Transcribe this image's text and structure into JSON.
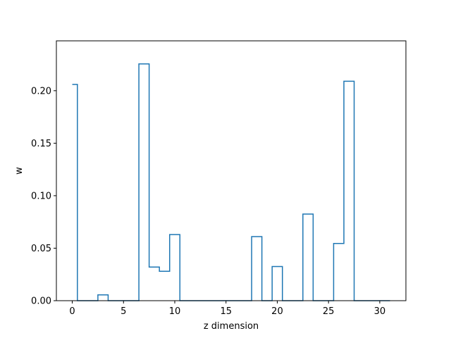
{
  "chart_data": {
    "type": "line",
    "drawstyle": "steps-mid",
    "title": "",
    "xlabel": "z dimension",
    "ylabel": "w",
    "xlim": [
      -1.55,
      32.55
    ],
    "ylim": [
      0,
      0.2475
    ],
    "xticks": [
      0,
      5,
      10,
      15,
      20,
      25,
      30
    ],
    "xtick_labels": [
      "0",
      "5",
      "10",
      "15",
      "20",
      "25",
      "30"
    ],
    "yticks": [
      0,
      0.05,
      0.1,
      0.15,
      0.2
    ],
    "ytick_labels": [
      "0.00",
      "0.05",
      "0.10",
      "0.15",
      "0.20"
    ],
    "grid": false,
    "line_color": "#1f77b4",
    "x": [
      0,
      1,
      2,
      3,
      4,
      5,
      6,
      7,
      8,
      9,
      10,
      11,
      12,
      13,
      14,
      15,
      16,
      17,
      18,
      19,
      20,
      21,
      22,
      23,
      24,
      25,
      26,
      27,
      28,
      29,
      30,
      31
    ],
    "values": [
      0.206,
      0,
      0,
      0.0055,
      0,
      0,
      0,
      0.2255,
      0.032,
      0.028,
      0.063,
      0,
      0,
      0,
      0,
      0,
      0,
      0,
      0.061,
      0,
      0.0325,
      0,
      0,
      0.0825,
      0,
      0,
      0.0545,
      0.209,
      0,
      0,
      0,
      0
    ]
  }
}
